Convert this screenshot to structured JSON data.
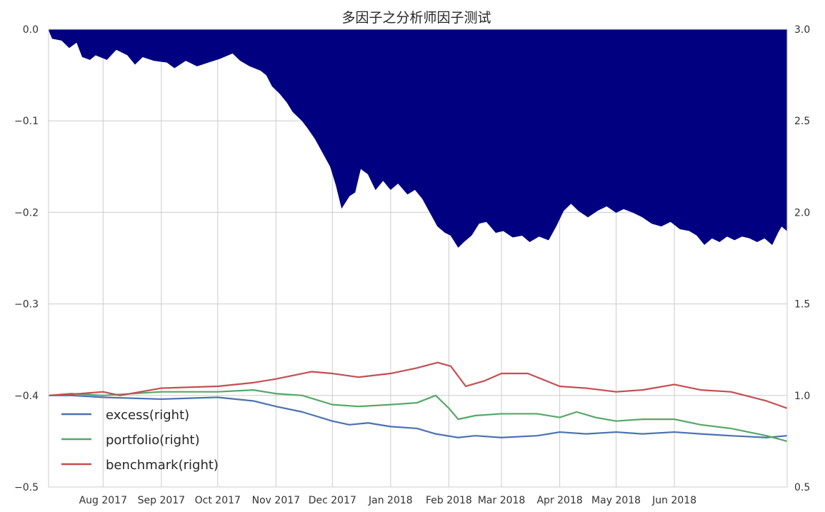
{
  "chart_data": {
    "type": "area",
    "title": "多因子之分析师因子测试",
    "xlabel": "",
    "ylabel": "",
    "grid": true,
    "legend_position": "bottom-left",
    "x_range": [
      "2017-07-03",
      "2018-07-31"
    ],
    "ylim_left": [
      -0.5,
      0.0
    ],
    "ylim_right": [
      0.5,
      3.0
    ],
    "x_ticks": [
      {
        "date": "2017-08-01",
        "label": "Aug 2017"
      },
      {
        "date": "2017-09-01",
        "label": "Sep 2017"
      },
      {
        "date": "2017-10-01",
        "label": "Oct 2017"
      },
      {
        "date": "2017-11-01",
        "label": "Nov 2017"
      },
      {
        "date": "2017-12-01",
        "label": "Dec 2017"
      },
      {
        "date": "2018-01-01",
        "label": "Jan 2018"
      },
      {
        "date": "2018-02-01",
        "label": "Feb 2018"
      },
      {
        "date": "2018-03-01",
        "label": "Mar 2018"
      },
      {
        "date": "2018-04-01",
        "label": "Apr 2018"
      },
      {
        "date": "2018-05-01",
        "label": "May 2018"
      },
      {
        "date": "2018-06-01",
        "label": "Jun 2018"
      }
    ],
    "y_ticks_left": [
      {
        "value": 0.0,
        "label": "0.0"
      },
      {
        "value": -0.1,
        "label": "−0.1"
      },
      {
        "value": -0.2,
        "label": "−0.2"
      },
      {
        "value": -0.3,
        "label": "−0.3"
      },
      {
        "value": -0.4,
        "label": "−0.4"
      },
      {
        "value": -0.5,
        "label": "−0.5"
      }
    ],
    "y_ticks_right": [
      {
        "value": 3.0,
        "label": "3.0"
      },
      {
        "value": 2.5,
        "label": "2.5"
      },
      {
        "value": 2.0,
        "label": "2.0"
      },
      {
        "value": 1.5,
        "label": "1.5"
      },
      {
        "value": 1.0,
        "label": "1.0"
      },
      {
        "value": 0.5,
        "label": "0.5"
      }
    ],
    "drawdown": {
      "axis": "left",
      "color": "#000080",
      "points": [
        [
          "2017-07-03",
          0.0
        ],
        [
          "2017-07-05",
          -0.01
        ],
        [
          "2017-07-10",
          -0.012
        ],
        [
          "2017-07-14",
          -0.02
        ],
        [
          "2017-07-18",
          -0.014
        ],
        [
          "2017-07-21",
          -0.03
        ],
        [
          "2017-07-25",
          -0.033
        ],
        [
          "2017-07-28",
          -0.028
        ],
        [
          "2017-08-03",
          -0.033
        ],
        [
          "2017-08-08",
          -0.022
        ],
        [
          "2017-08-14",
          -0.028
        ],
        [
          "2017-08-18",
          -0.038
        ],
        [
          "2017-08-22",
          -0.03
        ],
        [
          "2017-08-28",
          -0.034
        ],
        [
          "2017-09-04",
          -0.036
        ],
        [
          "2017-09-08",
          -0.042
        ],
        [
          "2017-09-14",
          -0.034
        ],
        [
          "2017-09-20",
          -0.04
        ],
        [
          "2017-09-26",
          -0.036
        ],
        [
          "2017-10-02",
          -0.032
        ],
        [
          "2017-10-09",
          -0.026
        ],
        [
          "2017-10-13",
          -0.034
        ],
        [
          "2017-10-18",
          -0.04
        ],
        [
          "2017-10-24",
          -0.045
        ],
        [
          "2017-10-27",
          -0.05
        ],
        [
          "2017-10-30",
          -0.062
        ],
        [
          "2017-11-03",
          -0.07
        ],
        [
          "2017-11-07",
          -0.08
        ],
        [
          "2017-11-10",
          -0.09
        ],
        [
          "2017-11-15",
          -0.1
        ],
        [
          "2017-11-18",
          -0.108
        ],
        [
          "2017-11-22",
          -0.12
        ],
        [
          "2017-11-26",
          -0.135
        ],
        [
          "2017-11-30",
          -0.15
        ],
        [
          "2017-12-03",
          -0.17
        ],
        [
          "2017-12-06",
          -0.195
        ],
        [
          "2017-12-10",
          -0.182
        ],
        [
          "2017-12-13",
          -0.178
        ],
        [
          "2017-12-16",
          -0.152
        ],
        [
          "2017-12-20",
          -0.158
        ],
        [
          "2017-12-24",
          -0.175
        ],
        [
          "2017-12-28",
          -0.165
        ],
        [
          "2018-01-01",
          -0.175
        ],
        [
          "2018-01-05",
          -0.168
        ],
        [
          "2018-01-10",
          -0.18
        ],
        [
          "2018-01-14",
          -0.175
        ],
        [
          "2018-01-18",
          -0.185
        ],
        [
          "2018-01-22",
          -0.2
        ],
        [
          "2018-01-26",
          -0.215
        ],
        [
          "2018-01-30",
          -0.222
        ],
        [
          "2018-02-02",
          -0.225
        ],
        [
          "2018-02-06",
          -0.238
        ],
        [
          "2018-02-09",
          -0.232
        ],
        [
          "2018-02-13",
          -0.225
        ],
        [
          "2018-02-17",
          -0.212
        ],
        [
          "2018-02-21",
          -0.21
        ],
        [
          "2018-02-26",
          -0.222
        ],
        [
          "2018-03-02",
          -0.22
        ],
        [
          "2018-03-07",
          -0.227
        ],
        [
          "2018-03-12",
          -0.225
        ],
        [
          "2018-03-16",
          -0.232
        ],
        [
          "2018-03-21",
          -0.226
        ],
        [
          "2018-03-26",
          -0.23
        ],
        [
          "2018-03-30",
          -0.215
        ],
        [
          "2018-04-03",
          -0.198
        ],
        [
          "2018-04-07",
          -0.19
        ],
        [
          "2018-04-11",
          -0.198
        ],
        [
          "2018-04-16",
          -0.205
        ],
        [
          "2018-04-21",
          -0.198
        ],
        [
          "2018-04-26",
          -0.193
        ],
        [
          "2018-05-01",
          -0.2
        ],
        [
          "2018-05-05",
          -0.196
        ],
        [
          "2018-05-10",
          -0.2
        ],
        [
          "2018-05-15",
          -0.205
        ],
        [
          "2018-05-20",
          -0.212
        ],
        [
          "2018-05-25",
          -0.215
        ],
        [
          "2018-05-30",
          -0.21
        ],
        [
          "2018-06-04",
          -0.218
        ],
        [
          "2018-06-09",
          -0.22
        ],
        [
          "2018-06-13",
          -0.225
        ],
        [
          "2018-06-17",
          -0.235
        ],
        [
          "2018-06-21",
          -0.228
        ],
        [
          "2018-06-25",
          -0.232
        ],
        [
          "2018-06-29",
          -0.226
        ],
        [
          "2018-07-03",
          -0.23
        ],
        [
          "2018-07-07",
          -0.226
        ],
        [
          "2018-07-11",
          -0.228
        ],
        [
          "2018-07-15",
          -0.232
        ],
        [
          "2018-07-19",
          -0.228
        ],
        [
          "2018-07-23",
          -0.235
        ],
        [
          "2018-07-26",
          -0.222
        ],
        [
          "2018-07-28",
          -0.215
        ],
        [
          "2018-07-31",
          -0.22
        ]
      ]
    },
    "series": [
      {
        "name": "excess(right)",
        "axis": "right",
        "color": "#4c72b0",
        "points": [
          [
            "2017-07-03",
            1.0
          ],
          [
            "2017-07-15",
            1.0
          ],
          [
            "2017-08-01",
            0.99
          ],
          [
            "2017-09-01",
            0.98
          ],
          [
            "2017-10-01",
            0.99
          ],
          [
            "2017-10-20",
            0.97
          ],
          [
            "2017-11-01",
            0.94
          ],
          [
            "2017-11-15",
            0.91
          ],
          [
            "2017-12-01",
            0.86
          ],
          [
            "2017-12-10",
            0.84
          ],
          [
            "2017-12-20",
            0.85
          ],
          [
            "2018-01-01",
            0.83
          ],
          [
            "2018-01-15",
            0.82
          ],
          [
            "2018-01-25",
            0.79
          ],
          [
            "2018-02-06",
            0.77
          ],
          [
            "2018-02-15",
            0.78
          ],
          [
            "2018-03-01",
            0.77
          ],
          [
            "2018-03-20",
            0.78
          ],
          [
            "2018-04-01",
            0.8
          ],
          [
            "2018-04-15",
            0.79
          ],
          [
            "2018-05-01",
            0.8
          ],
          [
            "2018-05-15",
            0.79
          ],
          [
            "2018-06-01",
            0.8
          ],
          [
            "2018-06-15",
            0.79
          ],
          [
            "2018-07-01",
            0.78
          ],
          [
            "2018-07-20",
            0.77
          ],
          [
            "2018-07-31",
            0.78
          ]
        ]
      },
      {
        "name": "portfolio(right)",
        "axis": "right",
        "color": "#55a868",
        "points": [
          [
            "2017-07-03",
            1.0
          ],
          [
            "2017-07-15",
            1.01
          ],
          [
            "2017-08-01",
            1.0
          ],
          [
            "2017-09-01",
            1.02
          ],
          [
            "2017-10-01",
            1.02
          ],
          [
            "2017-10-20",
            1.03
          ],
          [
            "2017-11-01",
            1.01
          ],
          [
            "2017-11-15",
            1.0
          ],
          [
            "2017-12-01",
            0.95
          ],
          [
            "2017-12-15",
            0.94
          ],
          [
            "2018-01-01",
            0.95
          ],
          [
            "2018-01-15",
            0.96
          ],
          [
            "2018-01-25",
            1.0
          ],
          [
            "2018-02-01",
            0.93
          ],
          [
            "2018-02-06",
            0.87
          ],
          [
            "2018-02-15",
            0.89
          ],
          [
            "2018-03-01",
            0.9
          ],
          [
            "2018-03-20",
            0.9
          ],
          [
            "2018-04-01",
            0.88
          ],
          [
            "2018-04-10",
            0.91
          ],
          [
            "2018-04-20",
            0.88
          ],
          [
            "2018-05-01",
            0.86
          ],
          [
            "2018-05-15",
            0.87
          ],
          [
            "2018-06-01",
            0.87
          ],
          [
            "2018-06-15",
            0.84
          ],
          [
            "2018-07-01",
            0.82
          ],
          [
            "2018-07-20",
            0.78
          ],
          [
            "2018-07-31",
            0.75
          ]
        ]
      },
      {
        "name": "benchmark(right)",
        "axis": "right",
        "color": "#c44e52",
        "points": [
          [
            "2017-07-03",
            1.0
          ],
          [
            "2017-07-20",
            1.01
          ],
          [
            "2017-08-01",
            1.02
          ],
          [
            "2017-08-10",
            1.0
          ],
          [
            "2017-09-01",
            1.04
          ],
          [
            "2017-10-01",
            1.05
          ],
          [
            "2017-10-20",
            1.07
          ],
          [
            "2017-11-01",
            1.09
          ],
          [
            "2017-11-20",
            1.13
          ],
          [
            "2017-12-01",
            1.12
          ],
          [
            "2017-12-15",
            1.1
          ],
          [
            "2018-01-01",
            1.12
          ],
          [
            "2018-01-15",
            1.15
          ],
          [
            "2018-01-26",
            1.18
          ],
          [
            "2018-02-02",
            1.16
          ],
          [
            "2018-02-10",
            1.05
          ],
          [
            "2018-02-20",
            1.08
          ],
          [
            "2018-03-01",
            1.12
          ],
          [
            "2018-03-15",
            1.12
          ],
          [
            "2018-04-01",
            1.05
          ],
          [
            "2018-04-15",
            1.04
          ],
          [
            "2018-05-01",
            1.02
          ],
          [
            "2018-05-15",
            1.03
          ],
          [
            "2018-06-01",
            1.06
          ],
          [
            "2018-06-15",
            1.03
          ],
          [
            "2018-07-01",
            1.02
          ],
          [
            "2018-07-20",
            0.97
          ],
          [
            "2018-07-31",
            0.93
          ]
        ]
      }
    ]
  }
}
